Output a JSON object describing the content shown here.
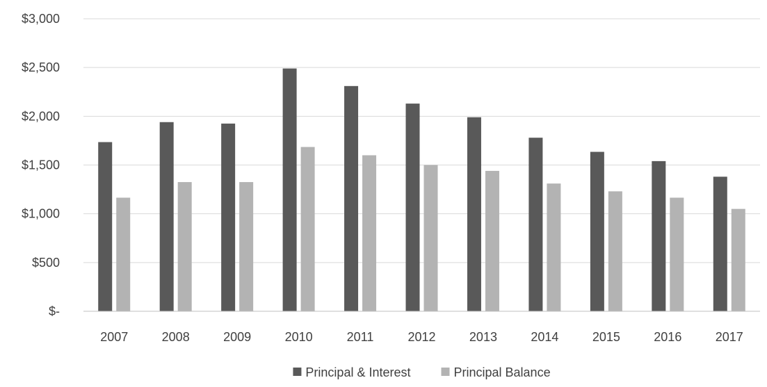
{
  "chart_data": {
    "type": "bar",
    "categories": [
      "2007",
      "2008",
      "2009",
      "2010",
      "2011",
      "2012",
      "2013",
      "2014",
      "2015",
      "2016",
      "2017"
    ],
    "series": [
      {
        "name": "Principal & Interest",
        "color": "#595959",
        "values": [
          1735,
          1940,
          1925,
          2490,
          2310,
          2130,
          1990,
          1780,
          1635,
          1540,
          1380
        ]
      },
      {
        "name": "Principal Balance",
        "color": "#b3b3b3",
        "values": [
          1165,
          1325,
          1325,
          1685,
          1600,
          1500,
          1440,
          1310,
          1230,
          1165,
          1050
        ]
      }
    ],
    "title": "",
    "xlabel": "",
    "ylabel": "",
    "ylim": [
      0,
      3000
    ],
    "yticks": [
      {
        "value": 0,
        "label": "$-"
      },
      {
        "value": 500,
        "label": "$500"
      },
      {
        "value": 1000,
        "label": "$1,000"
      },
      {
        "value": 1500,
        "label": "$1,500"
      },
      {
        "value": 2000,
        "label": "$2,000"
      },
      {
        "value": 2500,
        "label": "$2,500"
      },
      {
        "value": 3000,
        "label": "$3,000"
      }
    ],
    "grid": true,
    "gridColor": "#d9d9d9",
    "axisColor": "#bfbfbf",
    "legend": "bottom"
  }
}
